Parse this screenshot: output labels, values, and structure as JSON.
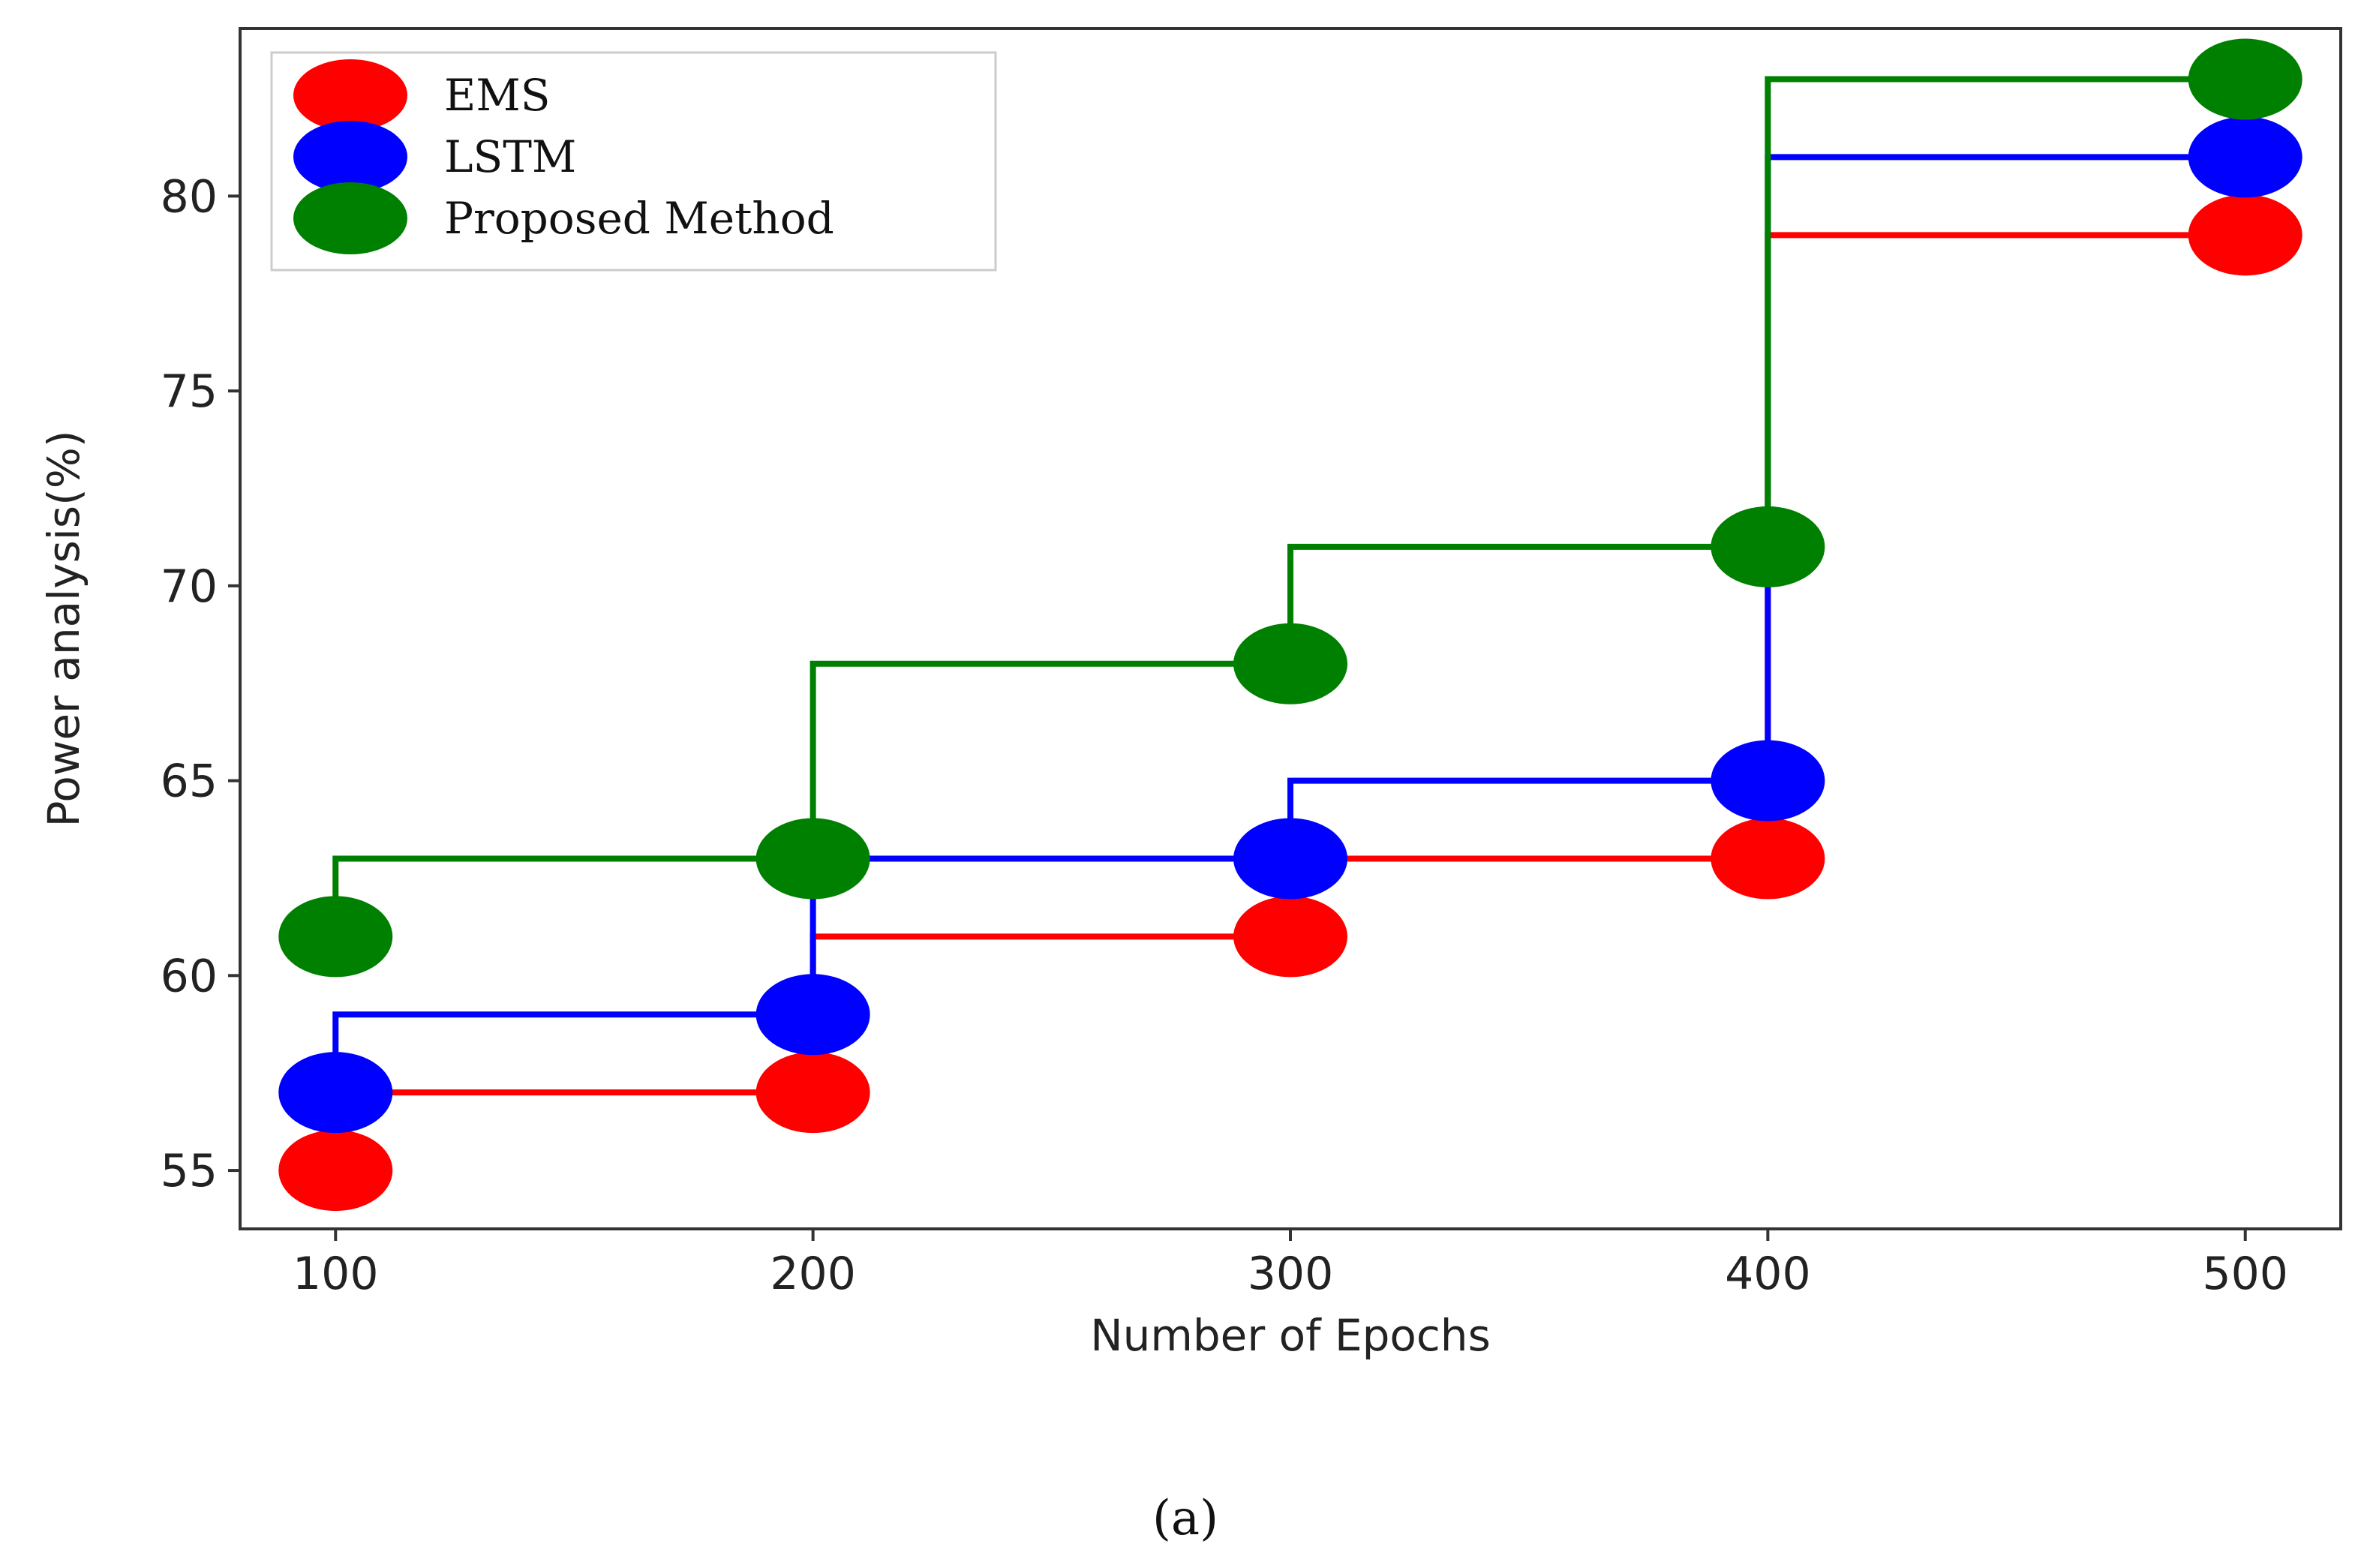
{
  "chart_data": {
    "type": "line",
    "step": "pre",
    "marker": "circle",
    "x": [
      100,
      200,
      300,
      400,
      500
    ],
    "series": [
      {
        "name": "EMS",
        "color": "#ff0000",
        "values": [
          55,
          57,
          61,
          63,
          79
        ]
      },
      {
        "name": "LSTM",
        "color": "#0000ff",
        "values": [
          57,
          59,
          63,
          65,
          81
        ]
      },
      {
        "name": "Proposed Method",
        "color": "#008000",
        "values": [
          61,
          63,
          68,
          71,
          83
        ]
      }
    ],
    "title": "",
    "xlabel": "Number of Epochs",
    "ylabel": "Power analysis(%)",
    "xticks": [
      "100",
      "200",
      "300",
      "400",
      "500"
    ],
    "yticks": [
      "55",
      "60",
      "65",
      "70",
      "75",
      "80"
    ],
    "xlim": [
      80,
      520
    ],
    "ylim": [
      53.5,
      84.3
    ],
    "grid": false,
    "legend_position": "top-left"
  },
  "caption": "(a)"
}
